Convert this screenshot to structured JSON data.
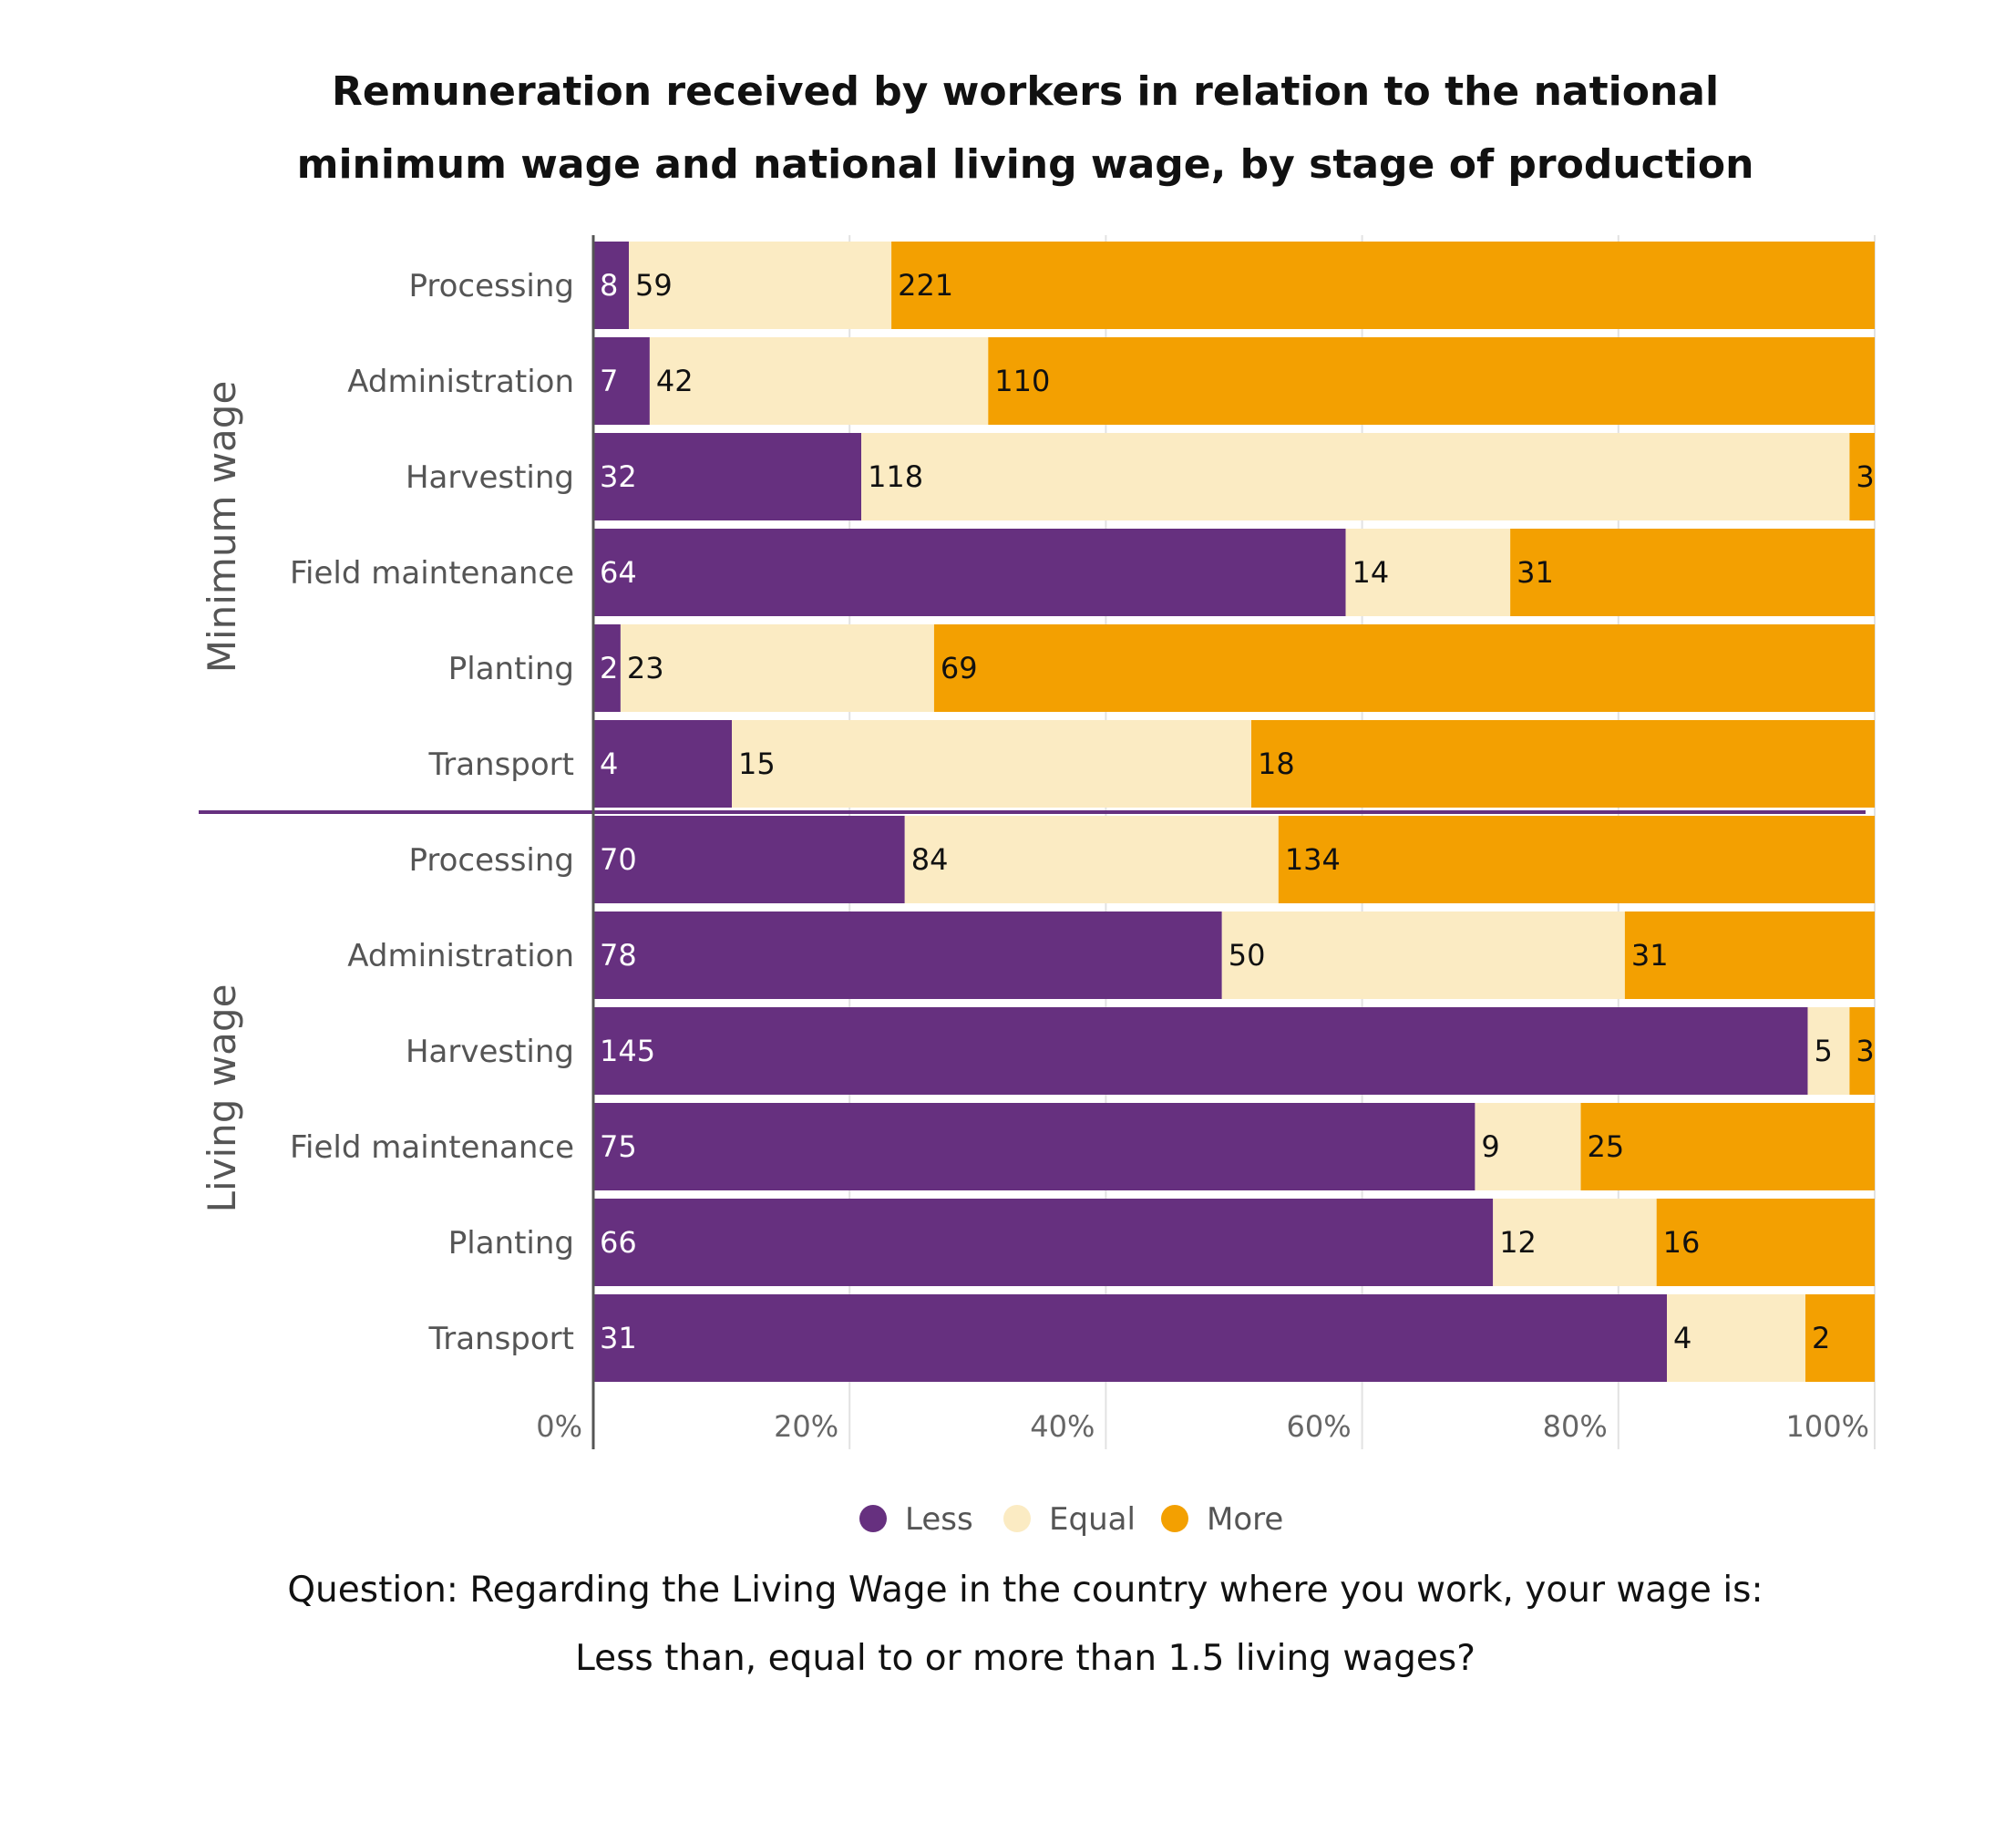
{
  "chart_data": {
    "type": "bar",
    "orientation": "horizontal",
    "stacked": "percent",
    "title": [
      "Remuneration received by workers in relation to the national",
      "minimum wage and national living wage, by stage of production"
    ],
    "xlim": [
      0,
      100
    ],
    "x_ticks": [
      "0%",
      "20%",
      "40%",
      "60%",
      "80%",
      "100%"
    ],
    "grid": true,
    "legend_position": "bottom",
    "series_names": [
      "Less",
      "Equal",
      "More"
    ],
    "colors": {
      "Less": "#66307f",
      "Equal": "#fbebc3",
      "More": "#f3a001",
      "divider": "#66307f",
      "label_on_dark": "#ffffff",
      "label_on_light": "#111111"
    },
    "groups": [
      {
        "name": "Minimum wage",
        "rows": [
          {
            "category": "Processing",
            "less": 8,
            "equal": 59,
            "more": 221
          },
          {
            "category": "Administration",
            "less": 7,
            "equal": 42,
            "more": 110
          },
          {
            "category": "Harvesting",
            "less": 32,
            "equal": 118,
            "more": 3
          },
          {
            "category": "Field maintenance",
            "less": 64,
            "equal": 14,
            "more": 31
          },
          {
            "category": "Planting",
            "less": 2,
            "equal": 23,
            "more": 69
          },
          {
            "category": "Transport",
            "less": 4,
            "equal": 15,
            "more": 18
          }
        ]
      },
      {
        "name": "Living wage",
        "rows": [
          {
            "category": "Processing",
            "less": 70,
            "equal": 84,
            "more": 134
          },
          {
            "category": "Administration",
            "less": 78,
            "equal": 50,
            "more": 31
          },
          {
            "category": "Harvesting",
            "less": 145,
            "equal": 5,
            "more": 3
          },
          {
            "category": "Field maintenance",
            "less": 75,
            "equal": 9,
            "more": 25
          },
          {
            "category": "Planting",
            "less": 66,
            "equal": 12,
            "more": 16
          },
          {
            "category": "Transport",
            "less": 31,
            "equal": 4,
            "more": 2
          }
        ]
      }
    ],
    "note": [
      "Question: Regarding the Living Wage in the country where you work, your wage is:",
      "Less than, equal to or more than 1.5 living wages?"
    ]
  }
}
